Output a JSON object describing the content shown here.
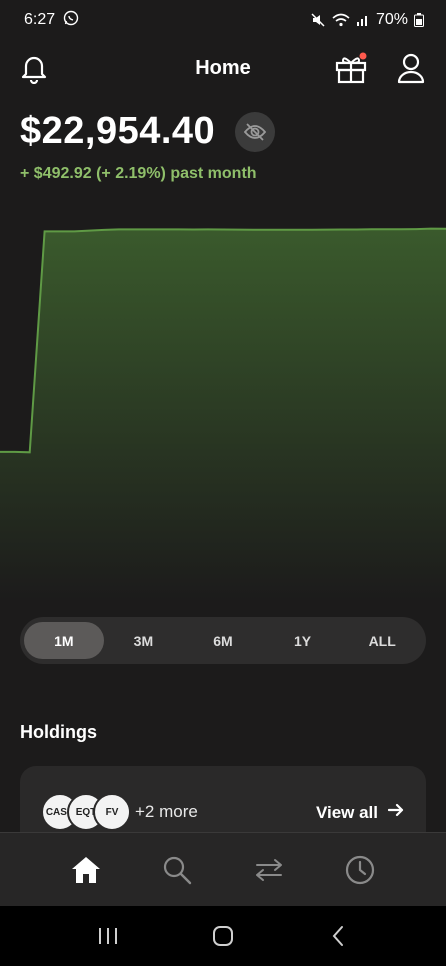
{
  "status_bar": {
    "time": "6:27",
    "battery": "70%"
  },
  "header": {
    "title": "Home"
  },
  "portfolio": {
    "balance": "$22,954.40",
    "change_text": "+ $492.92 (+ 2.19%) past month"
  },
  "chart_data": {
    "type": "area",
    "title": "",
    "xlabel": "",
    "ylabel": "",
    "x": [
      0,
      1,
      2,
      3,
      4,
      5,
      6,
      7,
      8,
      9,
      10,
      11,
      12,
      13,
      14,
      15,
      16,
      17,
      18,
      19,
      20,
      21,
      22,
      23,
      24,
      25,
      26,
      27,
      28,
      29,
      30
    ],
    "series": [
      {
        "values": [
          4180,
          4180,
          4150,
          22320,
          22320,
          22320,
          22380,
          22440,
          22480,
          22480,
          22485,
          22485,
          22485,
          22470,
          22478,
          22470,
          22465,
          22460,
          22460,
          22460,
          22460,
          22460,
          22465,
          22475,
          22475,
          22490,
          22490,
          22490,
          22505,
          22550,
          22540
        ]
      }
    ],
    "ylim": [
      -8000,
      24900
    ],
    "colors": {
      "line": "#5f9a45",
      "fill_top": "#3a5a2c",
      "fill_bottom": "#1c1b1b"
    },
    "grid": false
  },
  "range_selector": {
    "options": [
      "1M",
      "3M",
      "6M",
      "1Y",
      "ALL"
    ],
    "selected": "1M"
  },
  "holdings": {
    "title": "Holdings",
    "chips": [
      "CASH",
      "EQT",
      "FV"
    ],
    "more": "+2 more",
    "view_all": "View all"
  },
  "icons": {
    "bell": "bell-icon",
    "gift": "gift-icon",
    "profile": "user-icon",
    "eye": "eye-off-icon",
    "home": "home-icon",
    "search": "search-icon",
    "transfer": "swap-arrows-icon",
    "history": "clock-icon"
  },
  "accent": {
    "positive": "#8fbf6a",
    "notification": "#ff5a4e"
  }
}
